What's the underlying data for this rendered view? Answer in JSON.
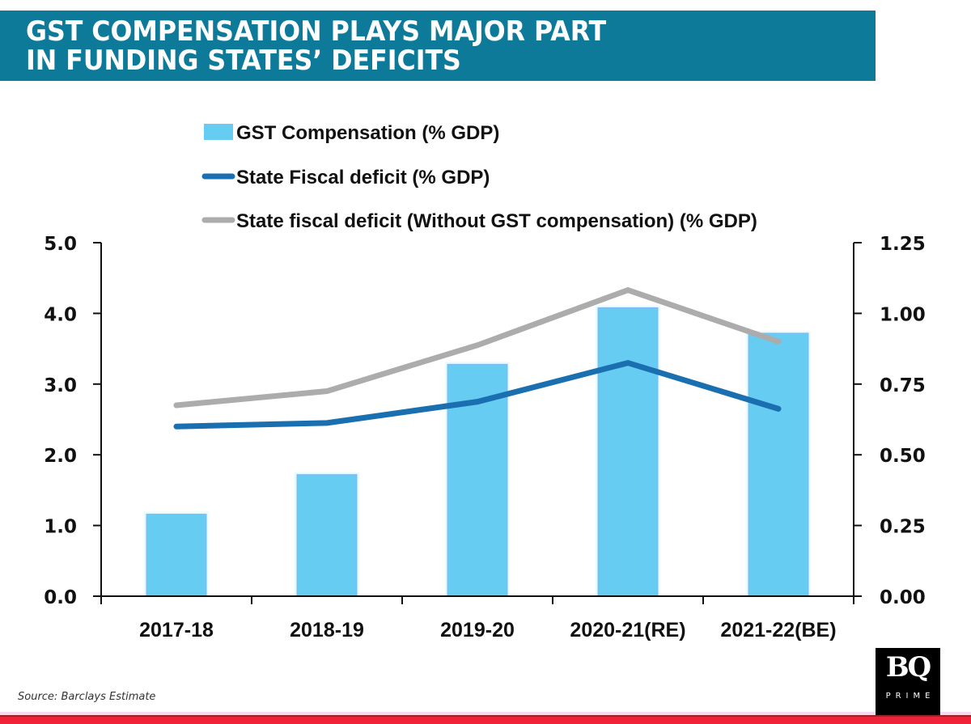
{
  "header": {
    "title_line1": "GST COMPENSATION PLAYS MAJOR PART",
    "title_line2": "IN FUNDING STATES’ DEFICITS",
    "banner_color": "#0e7a99"
  },
  "footer": {
    "source": "Source: Barclays Estimate",
    "logo_main": "BQ",
    "logo_sub": "PRIME",
    "accent_color": "#ee2238"
  },
  "chart_data": {
    "type": "bar",
    "title": "GST COMPENSATION PLAYS MAJOR PART IN FUNDING STATES’ DEFICITS",
    "categories": [
      "2017-18",
      "2018-19",
      "2019-20",
      "2020-21(RE)",
      "2021-22(BE)"
    ],
    "xlabel": "",
    "ylabel": "",
    "ylim": [
      0,
      5.0
    ],
    "y2lim": [
      0,
      1.25
    ],
    "yticks": [
      "0.0",
      "1.0",
      "2.0",
      "3.0",
      "4.0",
      "5.0"
    ],
    "y2ticks": [
      "0.00",
      "0.25",
      "0.50",
      "0.75",
      "1.00",
      "1.25"
    ],
    "grid": false,
    "legend_position": "top",
    "series": [
      {
        "name": "GST Compensation (% GDP)",
        "kind": "bar",
        "axis": "right",
        "color": "#66ccf2",
        "values": [
          0.29,
          0.43,
          0.82,
          1.02,
          0.93
        ]
      },
      {
        "name": "State Fiscal deficit (% GDP)",
        "kind": "line",
        "axis": "left",
        "color": "#1a6fb0",
        "values": [
          2.4,
          2.45,
          2.75,
          3.3,
          2.65
        ]
      },
      {
        "name": "State fiscal deficit (Without GST compensation) (% GDP)",
        "kind": "line",
        "axis": "left",
        "color": "#acacac",
        "values": [
          2.7,
          2.9,
          3.55,
          4.33,
          3.6
        ]
      }
    ]
  }
}
